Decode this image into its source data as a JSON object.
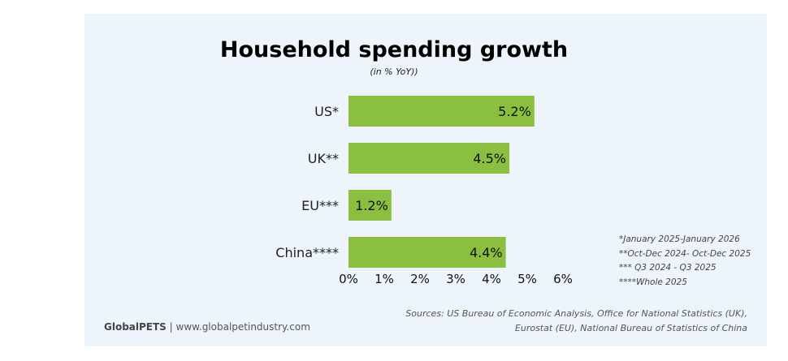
{
  "chart_data": {
    "type": "bar",
    "orientation": "horizontal",
    "title": "Household spending growth",
    "subtitle": "(in % YoY))",
    "categories": [
      "US*",
      "UK**",
      "EU***",
      "China****"
    ],
    "values": [
      5.2,
      4.5,
      1.2,
      4.4
    ],
    "data_labels": [
      "5.2%",
      "4.5%",
      "1.2%",
      "4.4%"
    ],
    "xlim": [
      0,
      6
    ],
    "x_ticks": [
      "0%",
      "1%",
      "2%",
      "3%",
      "4%",
      "5%",
      "6%"
    ],
    "grid": false,
    "bar_color": "#8bbf3f"
  },
  "notes": [
    "*January 2025-January 2026",
    "**Oct-Dec 2024- Oct-Dec 2025",
    "*** Q3 2024 - Q3 2025",
    "****Whole 2025"
  ],
  "sources": [
    "Sources: US Bureau of Economic Analysis, Office for National Statistics (UK),",
    "Eurostat (EU), National Bureau of Statistics of China"
  ],
  "brand": {
    "name": "GlobalPETS",
    "separator": "|",
    "url": "www.globalpetindustry.com"
  }
}
